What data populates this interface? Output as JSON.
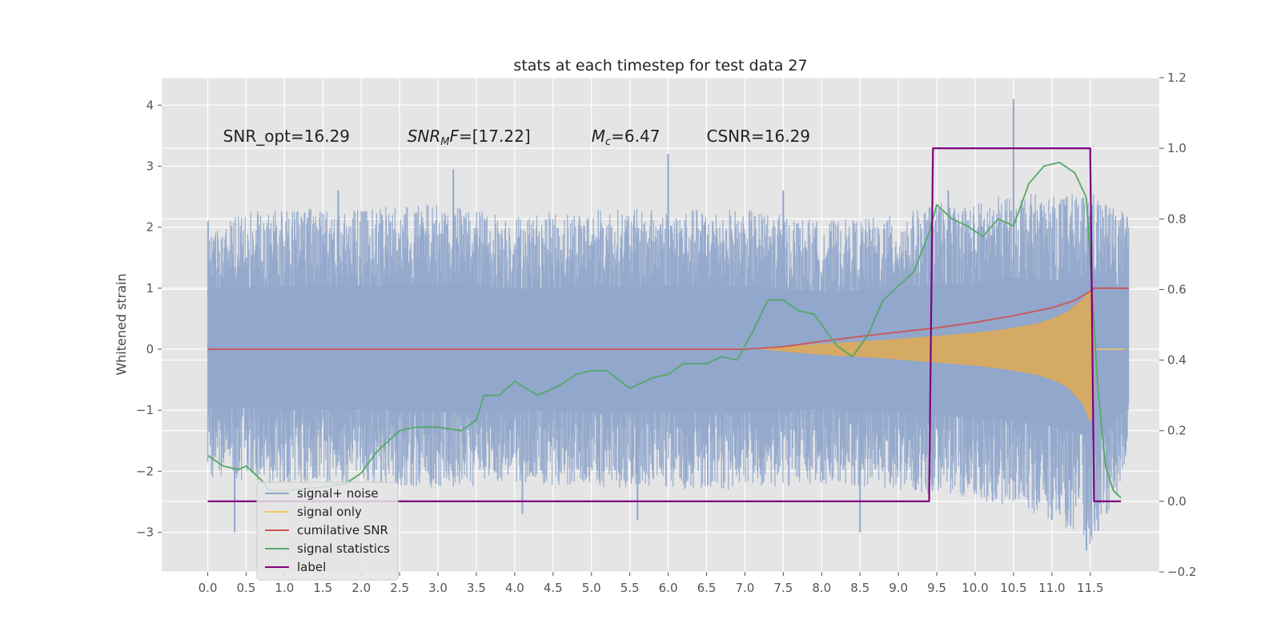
{
  "chart_data": {
    "type": "line",
    "title": "stats at each timestep for test data 27",
    "ylabel": "Whitened strain",
    "xlabel": "",
    "ylim": [
      -3.65,
      4.45
    ],
    "ylim_right": [
      -0.2,
      1.2
    ],
    "xlim": [
      -0.6,
      12.4
    ],
    "x_ticks": [
      0.0,
      0.5,
      1.0,
      1.5,
      2.0,
      2.5,
      3.0,
      3.5,
      4.0,
      4.5,
      5.0,
      5.5,
      6.0,
      6.5,
      7.0,
      7.5,
      8.0,
      8.5,
      9.0,
      9.5,
      10.0,
      10.5,
      11.0,
      11.5
    ],
    "x_tick_labels": [
      "0.0",
      "0.5",
      "1.0",
      "1.5",
      "2.0",
      "2.5",
      "3.0",
      "3.5",
      "4.0",
      "4.5",
      "5.0",
      "5.5",
      "6.0",
      "6.5",
      "7.0",
      "7.5",
      "8.0",
      "8.5",
      "9.0",
      "9.5",
      "10.0",
      "10.5",
      "11.0",
      "11.5"
    ],
    "y_ticks": [
      -3,
      -2,
      -1,
      0,
      1,
      2,
      3,
      4
    ],
    "y_tick_labels": [
      "−3",
      "−2",
      "−1",
      "0",
      "1",
      "2",
      "3",
      "4"
    ],
    "y2_ticks": [
      -0.2,
      0.0,
      0.2,
      0.4,
      0.6,
      0.8,
      1.0,
      1.2
    ],
    "y2_tick_labels": [
      "−0.2",
      "0.0",
      "0.2",
      "0.4",
      "0.6",
      "0.8",
      "1.0",
      "1.2"
    ],
    "grid": true,
    "annotations": [
      {
        "text": "SNR_opt=16.29",
        "x": 0.2,
        "y": 3.4
      },
      {
        "text": "SNR_MF=[17.22]",
        "x": 2.6,
        "y": 3.4
      },
      {
        "text": "M_c=6.47",
        "x": 5.0,
        "y": 3.4
      },
      {
        "text": "CSNR=16.29",
        "x": 6.5,
        "y": 3.4
      }
    ],
    "legend": {
      "position": "lower-left",
      "entries": [
        {
          "label": "signal+ noise",
          "color": "#91a7cc"
        },
        {
          "label": "signal only",
          "color": "#f2c75c"
        },
        {
          "label": "cumilative SNR",
          "color": "#cc5555"
        },
        {
          "label": "signal statistics",
          "color": "#55a868"
        },
        {
          "label": "label",
          "color": "#800080"
        }
      ]
    },
    "noise_envelope": {
      "x": [
        0.0,
        1.0,
        2.0,
        3.0,
        4.0,
        5.0,
        6.0,
        7.0,
        8.0,
        9.0,
        9.5,
        10.0,
        10.5,
        11.0,
        11.5,
        12.0
      ],
      "upper": [
        2.2,
        2.3,
        2.3,
        2.4,
        2.2,
        2.3,
        2.3,
        2.3,
        2.1,
        2.2,
        2.4,
        2.4,
        2.6,
        2.5,
        2.6,
        2.2
      ],
      "lower": [
        -2.1,
        -2.2,
        -2.2,
        -2.3,
        -2.2,
        -2.3,
        -2.3,
        -2.3,
        -2.2,
        -2.3,
        -2.4,
        -2.5,
        -2.6,
        -2.8,
        -3.2,
        -2.2
      ],
      "spikes": [
        {
          "x": 6.0,
          "y": 3.2
        },
        {
          "x": 10.5,
          "y": 4.1
        },
        {
          "x": 3.2,
          "y": 2.95
        },
        {
          "x": 5.6,
          "y": -2.8
        },
        {
          "x": 11.45,
          "y": -3.3
        },
        {
          "x": 8.5,
          "y": -3.0
        },
        {
          "x": 0.35,
          "y": -3.0
        },
        {
          "x": 4.1,
          "y": -2.7
        },
        {
          "x": 11.0,
          "y": -2.8
        },
        {
          "x": 9.65,
          "y": 2.6
        },
        {
          "x": 1.7,
          "y": 2.6
        },
        {
          "x": 7.5,
          "y": 2.6
        }
      ]
    },
    "series": [
      {
        "name": "signal only",
        "axis": "left",
        "color": "#f2c75c",
        "x": [
          7.2,
          7.6,
          8.0,
          8.4,
          8.8,
          9.2,
          9.6,
          10.0,
          10.4,
          10.8,
          11.0,
          11.2,
          11.4,
          11.5,
          11.55
        ],
        "upper": [
          0.0,
          0.05,
          0.09,
          0.12,
          0.15,
          0.19,
          0.23,
          0.27,
          0.33,
          0.42,
          0.5,
          0.62,
          0.82,
          0.98,
          0.9
        ],
        "lower": [
          0.0,
          -0.05,
          -0.09,
          -0.12,
          -0.15,
          -0.19,
          -0.23,
          -0.27,
          -0.33,
          -0.42,
          -0.5,
          -0.62,
          -0.9,
          -1.2,
          -0.9
        ]
      },
      {
        "name": "cumilative SNR",
        "axis": "left",
        "color": "#cc5555",
        "x": [
          0.0,
          7.0,
          7.5,
          8.0,
          8.5,
          9.0,
          9.5,
          10.0,
          10.5,
          11.0,
          11.3,
          11.5,
          11.55,
          12.0
        ],
        "y": [
          0.0,
          0.0,
          0.04,
          0.13,
          0.21,
          0.28,
          0.35,
          0.44,
          0.55,
          0.68,
          0.8,
          0.95,
          1.0,
          1.0
        ]
      },
      {
        "name": "signal statistics",
        "axis": "right",
        "color": "#55a868",
        "x": [
          0.0,
          0.2,
          0.4,
          0.5,
          0.7,
          0.8,
          1.0,
          1.5,
          1.8,
          2.0,
          2.2,
          2.5,
          2.7,
          3.0,
          3.3,
          3.5,
          3.6,
          3.8,
          4.0,
          4.3,
          4.6,
          4.8,
          5.0,
          5.2,
          5.5,
          5.8,
          6.0,
          6.2,
          6.5,
          6.7,
          6.9,
          7.1,
          7.3,
          7.5,
          7.7,
          7.9,
          8.2,
          8.4,
          8.6,
          8.8,
          9.0,
          9.2,
          9.4,
          9.5,
          9.7,
          9.9,
          10.1,
          10.3,
          10.5,
          10.7,
          10.9,
          11.1,
          11.3,
          11.45,
          11.6,
          11.7,
          11.8,
          11.9
        ],
        "y": [
          0.13,
          0.1,
          0.09,
          0.1,
          0.06,
          0.03,
          0.03,
          0.04,
          0.05,
          0.08,
          0.14,
          0.2,
          0.21,
          0.21,
          0.2,
          0.23,
          0.3,
          0.3,
          0.34,
          0.3,
          0.33,
          0.36,
          0.37,
          0.37,
          0.32,
          0.35,
          0.36,
          0.39,
          0.39,
          0.41,
          0.4,
          0.48,
          0.57,
          0.57,
          0.54,
          0.53,
          0.44,
          0.41,
          0.47,
          0.57,
          0.61,
          0.65,
          0.76,
          0.84,
          0.8,
          0.78,
          0.75,
          0.8,
          0.78,
          0.9,
          0.95,
          0.96,
          0.93,
          0.86,
          0.32,
          0.1,
          0.03,
          0.01
        ]
      },
      {
        "name": "label",
        "axis": "right",
        "color": "#800080",
        "x": [
          0.0,
          9.4,
          9.45,
          11.5,
          11.55,
          11.9
        ],
        "y": [
          0.0,
          0.0,
          1.0,
          1.0,
          0.0,
          0.0
        ]
      }
    ]
  }
}
